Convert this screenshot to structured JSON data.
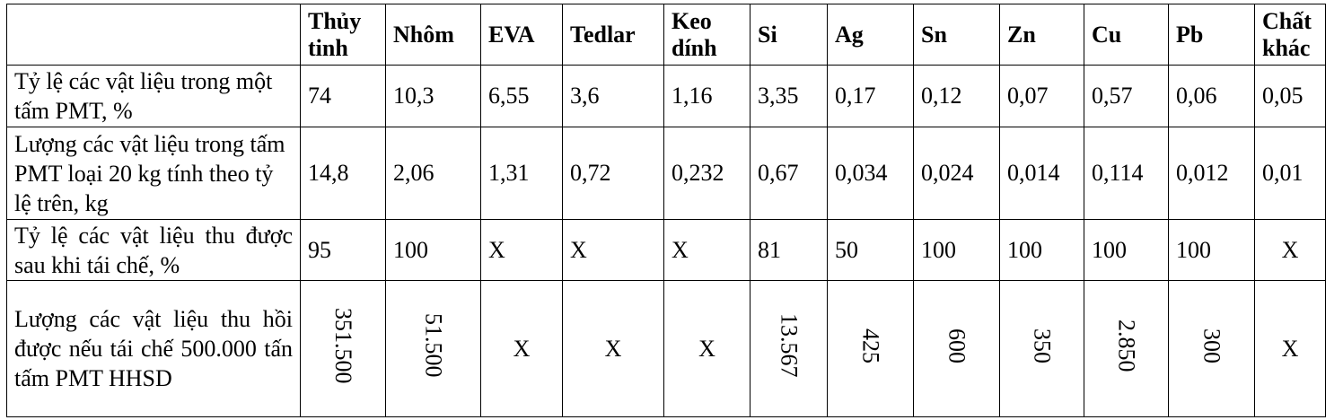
{
  "headers": [
    "",
    "Thủy tinh",
    "Nhôm",
    "EVA",
    "Tedlar",
    "Keo dính",
    "Si",
    "Ag",
    "Sn",
    "Zn",
    "Cu",
    "Pb",
    "Chất khác"
  ],
  "rows": [
    {
      "label": "Tỷ lệ các vật liệu trong một tấm PMT, %",
      "values": [
        "74",
        "10,3",
        "6,55",
        "3,6",
        "1,16",
        "3,35",
        "0,17",
        "0,12",
        "0,07",
        "0,57",
        "0,06",
        "0,05"
      ]
    },
    {
      "label": "Lượng các vật liệu trong tấm PMT loại 20 kg tính theo tỷ lệ trên, kg",
      "values": [
        "14,8",
        "2,06",
        "1,31",
        "0,72",
        "0,232",
        "0,67",
        "0,034",
        "0,024",
        "0,014",
        "0,114",
        "0,012",
        "0,01"
      ]
    },
    {
      "label": "Tỷ lệ các vật liệu thu được sau khi tái chế, %",
      "values": [
        "95",
        "100",
        "X",
        "X",
        "X",
        "81",
        "50",
        "100",
        "100",
        "100",
        "100",
        "X"
      ]
    },
    {
      "label": "Lượng các vật liệu thu hồi được nếu tái chế 500.000 tấn tấm PMT HHSD",
      "values": [
        "351.500",
        "51.500",
        "X",
        "X",
        "X",
        "13.567",
        "425",
        "600",
        "350",
        "2.850",
        "300",
        "X"
      ]
    }
  ]
}
